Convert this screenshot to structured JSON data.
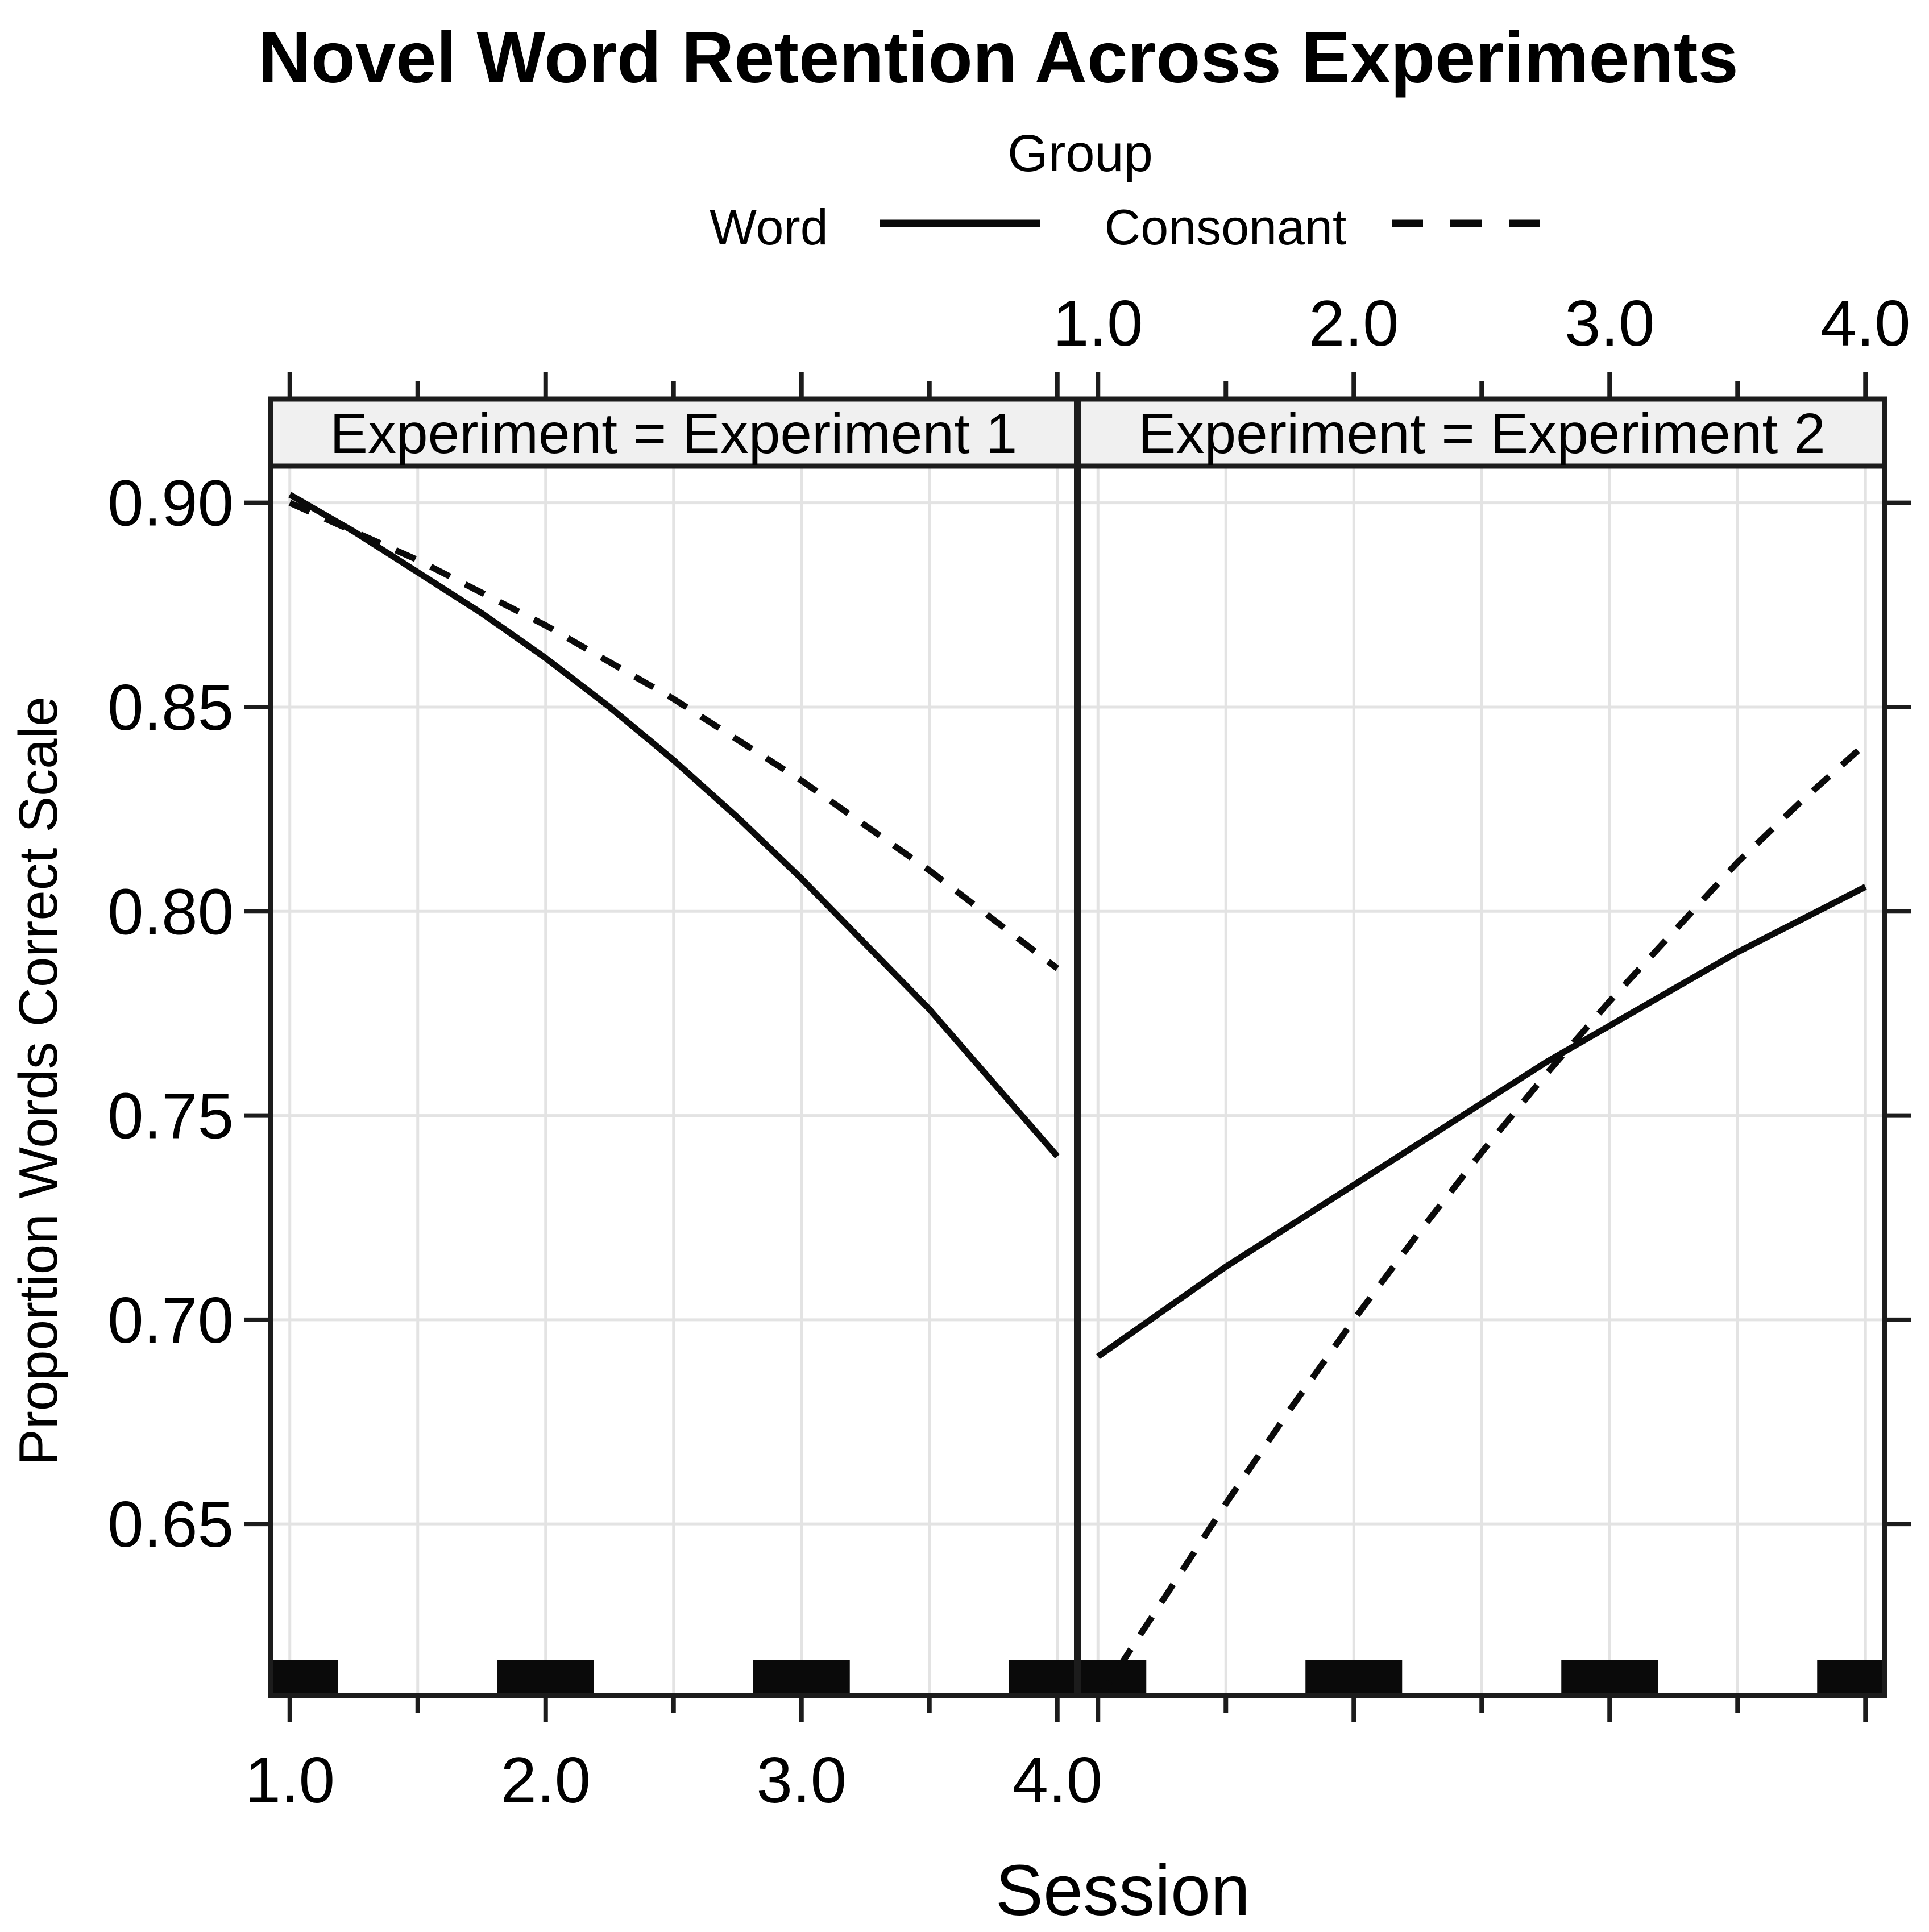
{
  "title": "Novel Word Retention Across Experiments",
  "legend": {
    "title": "Group",
    "items": [
      {
        "label": "Word",
        "line_style": "solid"
      },
      {
        "label": "Consonant",
        "line_style": "dashed"
      }
    ]
  },
  "axes": {
    "x_label": "Session",
    "y_label": "Proportion Words Correct Scale"
  },
  "chart_data": {
    "type": "line",
    "title": "Novel Word Retention Across Experiments",
    "xlabel": "Session",
    "ylabel": "Proportion Words Correct Scale",
    "legend_title": "Group",
    "legend_position": "top",
    "grid": true,
    "facet_variable": "Experiment",
    "xlim": [
      0.925,
      4.075
    ],
    "ylim": [
      0.608,
      0.909
    ],
    "x_major_ticks": [
      1.0,
      2.0,
      3.0,
      4.0
    ],
    "x_major_tick_labels": [
      "1.0",
      "2.0",
      "3.0",
      "4.0"
    ],
    "x_minor_ticks": [
      1.5,
      2.5,
      3.5
    ],
    "y_ticks": [
      0.65,
      0.7,
      0.75,
      0.8,
      0.85,
      0.9
    ],
    "y_tick_labels": [
      "0.65",
      "0.70",
      "0.75",
      "0.80",
      "0.85",
      "0.90"
    ],
    "x": [
      1,
      1.25,
      1.5,
      1.75,
      2,
      2.25,
      2.5,
      2.75,
      3,
      3.25,
      3.5,
      3.75,
      4
    ],
    "panels": [
      {
        "strip_label": "Experiment = Experiment 1",
        "series": [
          {
            "name": "Word",
            "line": "solid",
            "y": [
              0.902,
              0.893,
              0.883,
              0.873,
              0.862,
              0.85,
              0.837,
              0.823,
              0.808,
              0.792,
              0.776,
              0.758,
              0.74
            ]
          },
          {
            "name": "Consonant",
            "line": "dashed",
            "y": [
              0.9,
              0.893,
              0.886,
              0.878,
              0.87,
              0.861,
              0.852,
              0.842,
              0.832,
              0.821,
              0.81,
              0.798,
              0.786
            ]
          }
        ],
        "rug_marks": [
          1,
          2,
          3,
          4
        ]
      },
      {
        "strip_label": "Experiment = Experiment 2",
        "series": [
          {
            "name": "Word",
            "line": "solid",
            "y": [
              0.691,
              0.702,
              0.713,
              0.723,
              0.733,
              0.743,
              0.753,
              0.763,
              0.772,
              0.781,
              0.79,
              0.798,
              0.806
            ]
          },
          {
            "name": "Consonant",
            "line": "dashed",
            "y": [
              0.607,
              0.631,
              0.655,
              0.678,
              0.7,
              0.721,
              0.741,
              0.76,
              0.778,
              0.795,
              0.812,
              0.827,
              0.841
            ]
          }
        ],
        "rug_marks": [
          1,
          2,
          3,
          4
        ]
      }
    ],
    "colors": {
      "line": "#0a0a0a",
      "grid": "#e3e3e3",
      "strip_fill": "#f0f0f0",
      "frame": "#1c1c1c",
      "background": "#ffffff"
    }
  }
}
